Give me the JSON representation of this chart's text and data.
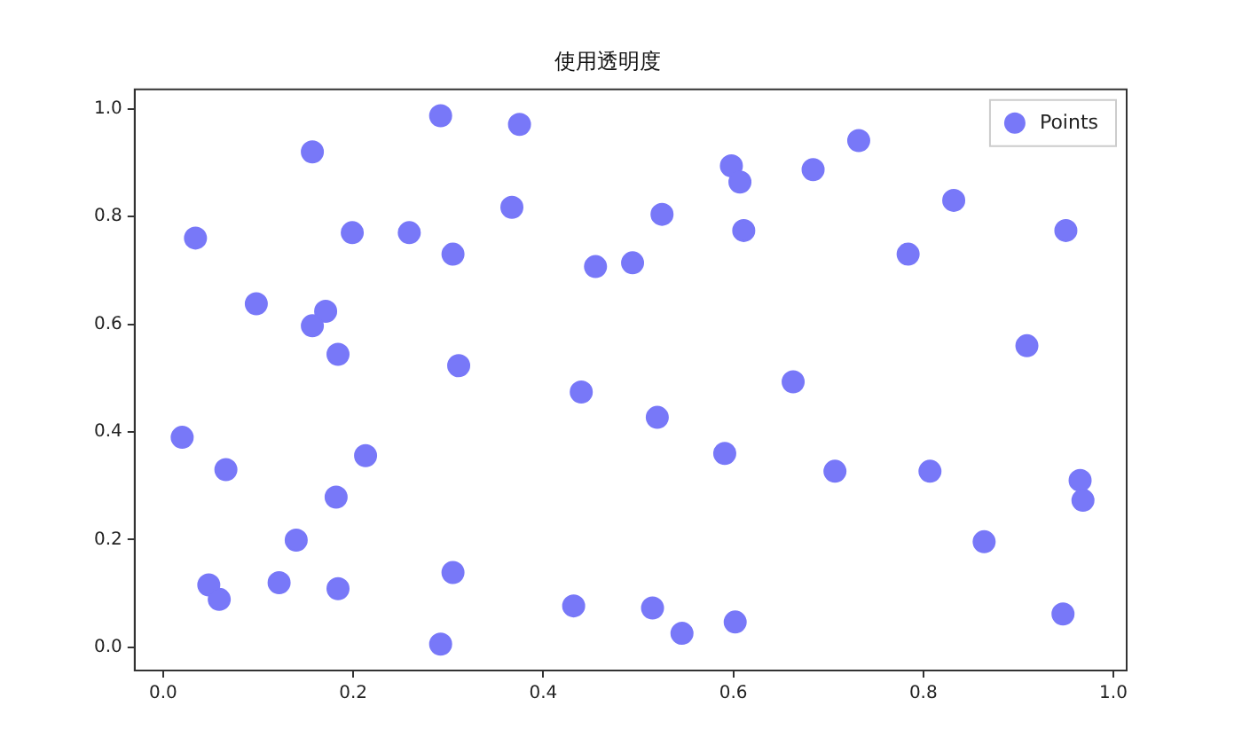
{
  "chart_data": {
    "type": "scatter",
    "title": "使用透明度",
    "legend": "top right",
    "grid": false,
    "marker": "circle",
    "xlim": [
      -0.03,
      1.014
    ],
    "ylim": [
      -0.043,
      1.036
    ],
    "xticks": [
      {
        "value": 0,
        "label": "0.0"
      },
      {
        "value": 0.2,
        "label": "0.2"
      },
      {
        "value": 0.4,
        "label": "0.4"
      },
      {
        "value": 0.6,
        "label": "0.6"
      },
      {
        "value": 0.8,
        "label": "0.8"
      },
      {
        "value": 1,
        "label": "1.0"
      }
    ],
    "yticks": [
      {
        "value": 0,
        "label": "0.0"
      },
      {
        "value": 0.2,
        "label": "0.2"
      },
      {
        "value": 0.4,
        "label": "0.4"
      },
      {
        "value": 0.6,
        "label": "0.6"
      },
      {
        "value": 0.8,
        "label": "0.8"
      },
      {
        "value": 1,
        "label": "1.0"
      }
    ],
    "series": [
      {
        "name": "Points",
        "color": "#7878f8",
        "x": [
          0.034,
          0.157,
          0.292,
          0.375,
          0.367,
          0.199,
          0.259,
          0.305,
          0.455,
          0.494,
          0.098,
          0.171,
          0.157,
          0.184,
          0.311,
          0.732,
          0.598,
          0.607,
          0.684,
          0.525,
          0.832,
          0.611,
          0.95,
          0.784,
          0.909,
          0.02,
          0.066,
          0.213,
          0.182,
          0.14,
          0.048,
          0.059,
          0.122,
          0.184,
          0.305,
          0.292,
          0.44,
          0.432,
          0.663,
          0.52,
          0.591,
          0.707,
          0.807,
          0.965,
          0.968,
          0.864,
          0.515,
          0.546,
          0.602,
          0.947
        ],
        "values": [
          0.76,
          0.92,
          0.987,
          0.971,
          0.817,
          0.77,
          0.77,
          0.73,
          0.707,
          0.714,
          0.638,
          0.624,
          0.597,
          0.544,
          0.523,
          0.941,
          0.894,
          0.864,
          0.887,
          0.804,
          0.83,
          0.774,
          0.774,
          0.73,
          0.56,
          0.39,
          0.33,
          0.356,
          0.279,
          0.199,
          0.116,
          0.089,
          0.12,
          0.109,
          0.139,
          0.006,
          0.474,
          0.077,
          0.493,
          0.427,
          0.36,
          0.327,
          0.327,
          0.31,
          0.273,
          0.196,
          0.073,
          0.026,
          0.047,
          0.062
        ]
      }
    ]
  }
}
